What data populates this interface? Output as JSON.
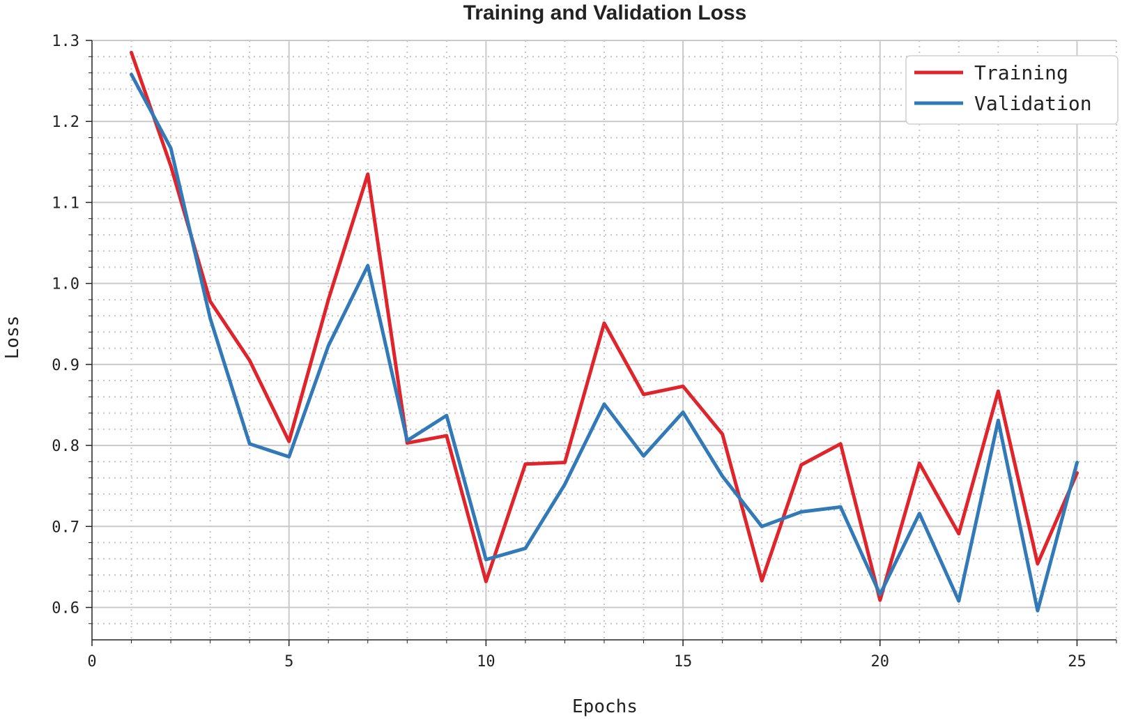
{
  "chart_data": {
    "type": "line",
    "title": "Training and Validation Loss",
    "xlabel": "Epochs",
    "ylabel": "Loss",
    "xlim": [
      0,
      26
    ],
    "ylim": [
      0.56,
      1.3
    ],
    "xticks": [
      0,
      5,
      10,
      15,
      20,
      25
    ],
    "yticks": [
      0.6,
      0.7,
      0.8,
      0.9,
      1.0,
      1.1,
      1.2,
      1.3
    ],
    "xtick_labels": [
      "0",
      "5",
      "10",
      "15",
      "20",
      "25"
    ],
    "ytick_labels": [
      "0.6",
      "0.7",
      "0.8",
      "0.9",
      "1.0",
      "1.1",
      "1.2",
      "1.3"
    ],
    "grid": true,
    "legend_position": "top-right",
    "x": [
      1,
      2,
      3,
      4,
      5,
      6,
      7,
      8,
      9,
      10,
      11,
      12,
      13,
      14,
      15,
      16,
      17,
      18,
      19,
      20,
      21,
      22,
      23,
      24,
      25
    ],
    "series": [
      {
        "name": "Training",
        "color": "#e0242b",
        "values": [
          1.285,
          1.145,
          0.978,
          0.905,
          0.805,
          0.98,
          1.135,
          0.803,
          0.812,
          0.632,
          0.777,
          0.779,
          0.951,
          0.863,
          0.873,
          0.814,
          0.633,
          0.776,
          0.802,
          0.609,
          0.778,
          0.691,
          0.867,
          0.654,
          0.766
        ]
      },
      {
        "name": "Validation",
        "color": "#3279b7",
        "values": [
          1.258,
          1.167,
          0.957,
          0.802,
          0.786,
          0.923,
          1.022,
          0.806,
          0.837,
          0.659,
          0.673,
          0.752,
          0.851,
          0.787,
          0.841,
          0.762,
          0.7,
          0.718,
          0.724,
          0.616,
          0.716,
          0.608,
          0.831,
          0.596,
          0.779
        ]
      }
    ]
  }
}
